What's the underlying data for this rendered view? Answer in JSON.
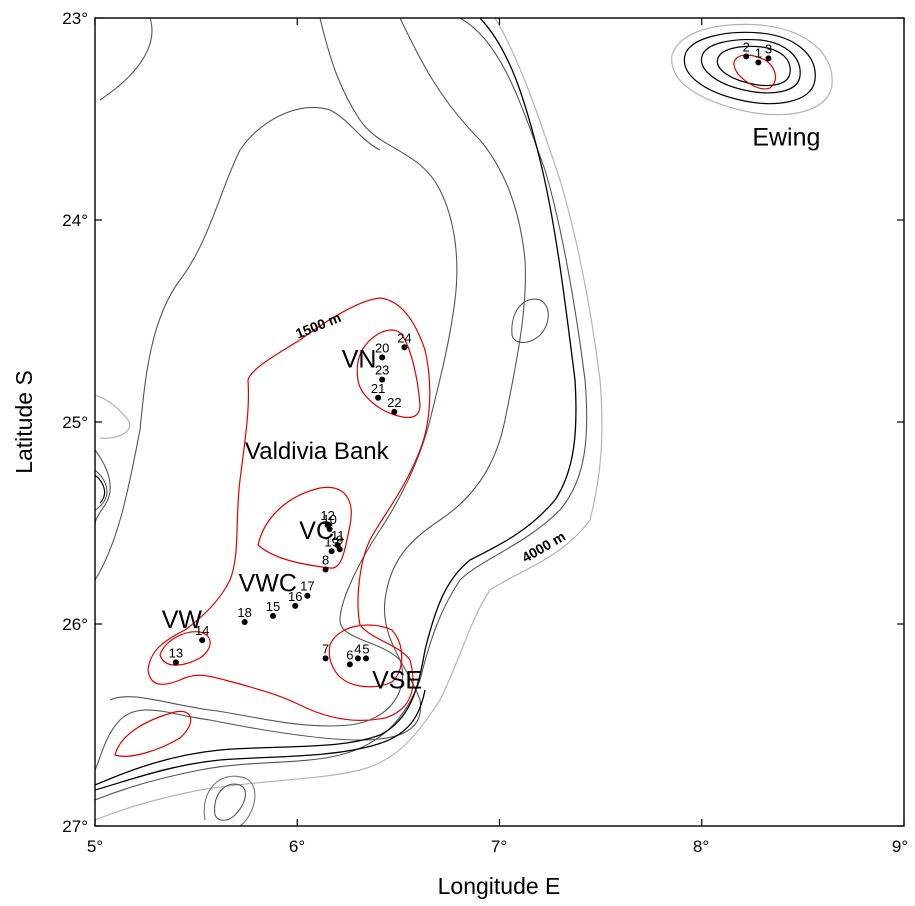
{
  "axes": {
    "xlabel": "Longitude E",
    "ylabel": "Latitude S",
    "x_ticks": [
      "5°",
      "6°",
      "7°",
      "8°",
      "9°"
    ],
    "y_ticks": [
      "23°",
      "24°",
      "25°",
      "26°",
      "27°"
    ]
  },
  "labels": {
    "valdivia_bank": "Valdivia Bank",
    "contour_1500": "1500 m",
    "contour_4000": "4000 m"
  },
  "regions": [
    {
      "name": "Ewing",
      "lon": 8.25,
      "lat": 23.63
    },
    {
      "name": "VN",
      "lon": 6.22,
      "lat": 24.73
    },
    {
      "name": "VC",
      "lon": 6.01,
      "lat": 25.58
    },
    {
      "name": "VWC",
      "lon": 5.71,
      "lat": 25.84
    },
    {
      "name": "VW",
      "lon": 5.33,
      "lat": 26.02
    },
    {
      "name": "VSE",
      "lon": 6.37,
      "lat": 26.32
    }
  ],
  "stations": [
    {
      "id": "1",
      "lon": 8.28,
      "lat": 23.22
    },
    {
      "id": "2",
      "lon": 8.22,
      "lat": 23.19
    },
    {
      "id": "3",
      "lon": 8.33,
      "lat": 23.2
    },
    {
      "id": "4",
      "lon": 6.3,
      "lat": 26.17
    },
    {
      "id": "5",
      "lon": 6.34,
      "lat": 26.17
    },
    {
      "id": "6",
      "lon": 6.26,
      "lat": 26.2
    },
    {
      "id": "7",
      "lon": 6.14,
      "lat": 26.17
    },
    {
      "id": "8",
      "lon": 6.14,
      "lat": 25.73
    },
    {
      "id": "9",
      "lon": 6.21,
      "lat": 25.63
    },
    {
      "id": "10",
      "lon": 6.16,
      "lat": 25.53
    },
    {
      "id": "11",
      "lon": 6.2,
      "lat": 25.61
    },
    {
      "id": "12",
      "lon": 6.15,
      "lat": 25.51
    },
    {
      "id": "13",
      "lon": 5.4,
      "lat": 26.19
    },
    {
      "id": "14",
      "lon": 5.53,
      "lat": 26.08
    },
    {
      "id": "15",
      "lon": 5.88,
      "lat": 25.96
    },
    {
      "id": "16",
      "lon": 5.99,
      "lat": 25.91
    },
    {
      "id": "17",
      "lon": 6.05,
      "lat": 25.86
    },
    {
      "id": "18",
      "lon": 5.74,
      "lat": 25.99
    },
    {
      "id": "19",
      "lon": 6.17,
      "lat": 25.64
    },
    {
      "id": "20",
      "lon": 6.42,
      "lat": 24.68
    },
    {
      "id": "21",
      "lon": 6.4,
      "lat": 24.88
    },
    {
      "id": "22",
      "lon": 6.48,
      "lat": 24.95
    },
    {
      "id": "23",
      "lon": 6.42,
      "lat": 24.79
    },
    {
      "id": "24",
      "lon": 6.53,
      "lat": 24.63
    }
  ]
}
